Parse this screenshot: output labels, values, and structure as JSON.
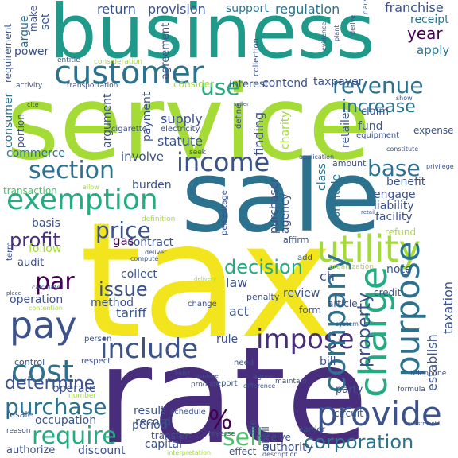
{
  "palette": {
    "yellow": "#f2e51d",
    "lime": "#a5db36",
    "green": "#4ac16d",
    "teal": "#25ab82",
    "cyan": "#1f9a8a",
    "blue": "#2c728e",
    "indigo": "#3b528b",
    "purple": "#472d7b",
    "dark": "#440154"
  },
  "words": {
    "service": "service",
    "tax": "tax",
    "rate": "rate",
    "sale": "sale",
    "business": "business",
    "customer": "customer",
    "exemption": "exemption",
    "utility": "utility",
    "provide": "provide",
    "company": "company",
    "charge": "charge",
    "purpose": "purpose",
    "pay": "pay",
    "include": "include",
    "impose": "impose",
    "income": "income",
    "section": "section",
    "revenue": "revenue",
    "use": "use",
    "cost": "cost",
    "require": "require",
    "purchase": "purchase",
    "sell": "sell",
    "corporation": "corporation",
    "property": "property",
    "determine": "determine",
    "base": "base",
    "price": "price",
    "profit": "profit",
    "decision": "decision",
    "issue": "issue",
    "par": "par",
    "percent": "%",
    "increase": "increase",
    "year": "year",
    "return": "return",
    "provision": "provision",
    "support": "support",
    "regulation": "regulation",
    "franchise": "franchise",
    "receipt": "receipt",
    "apply": "apply",
    "contend": "contend",
    "consider": "consider",
    "interest": "interest",
    "taxpayer": "taxpayer",
    "claim": "claim",
    "fund": "fund",
    "supply": "supply",
    "statute": "statute",
    "expense": "expense",
    "charity": "charity",
    "retailer": "retailer",
    "finding": "finding",
    "involve": "involve",
    "commerce": "commerce",
    "transaction": "transaction",
    "burden": "burden",
    "agency": "agency",
    "engage": "engage",
    "benefit": "benefit",
    "liability": "liability",
    "facility": "facility",
    "refund": "refund",
    "class": "class",
    "conclude": "conclude",
    "basis": "basis",
    "gas": "gas",
    "contract": "contract",
    "follow": "follow",
    "audit": "audit",
    "collect": "collect",
    "law": "law",
    "method": "method",
    "tariff": "tariff",
    "operation": "operation",
    "act": "act",
    "review": "review",
    "note": "note",
    "ch": "ch",
    "rule": "rule",
    "taxation": "taxation",
    "establish": "establish",
    "credit": "credit",
    "form": "form",
    "article": "article",
    "operate": "operate",
    "occupation": "occupation",
    "result": "result",
    "period": "period",
    "record": "record",
    "bill": "bill",
    "circuit": "circuit",
    "party": "party",
    "receive": "receive",
    "authority": "authority",
    "authorize": "authorize",
    "discount": "discount",
    "capital": "capital",
    "transfer": "transfer",
    "effect": "effect",
    "power": "power",
    "argue": "argue",
    "set": "set",
    "make": "make",
    "payment": "payment",
    "argument": "argument",
    "consumer": "consumer",
    "portion": "portion",
    "agreement": "agreement",
    "consideration": "consideration",
    "transportation": "transportation",
    "entitle": "entitle",
    "activity": "activity",
    "requirement": "requirement",
    "electricity": "electricity",
    "cigarette": "cigarette",
    "equipment": "equipment",
    "collection": "collection",
    "define": "define",
    "affirm": "affirm",
    "seek": "seek",
    "percentage": "percentage",
    "amount": "amount",
    "privilege": "privilege",
    "resale": "resale",
    "control": "control",
    "respect": "respect",
    "person": "person",
    "penalty": "penalty",
    "change": "change",
    "produce": "produce",
    "carrier": "carrier",
    "schedule": "schedule",
    "shall": "shall",
    "need": "need",
    "report": "report",
    "file": "file",
    "plant": "plant",
    "evidence": "evidence",
    "derive": "derive",
    "clause": "clause",
    "show": "show",
    "constitute": "constitute",
    "application": "application",
    "deliver": "deliver",
    "compute": "compute",
    "definition": "definition",
    "allow": "allow",
    "organization": "organization",
    "add": "add",
    "delivery": "delivery",
    "reason": "reason",
    "interpretation": "interpretation",
    "reverse": "reverse",
    "telephone": "telephone",
    "formula": "formula",
    "system": "system",
    "cite": "cite",
    "exist": "exist",
    "maintain": "maintain",
    "agree": "agree",
    "seller": "seller",
    "term": "term",
    "approve": "approve",
    "number": "number",
    "retail": "retail",
    "place": "place",
    "calculate": "calculate",
    "contention": "contention",
    "investment": "investment",
    "difference": "difference",
    "description": "description"
  }
}
